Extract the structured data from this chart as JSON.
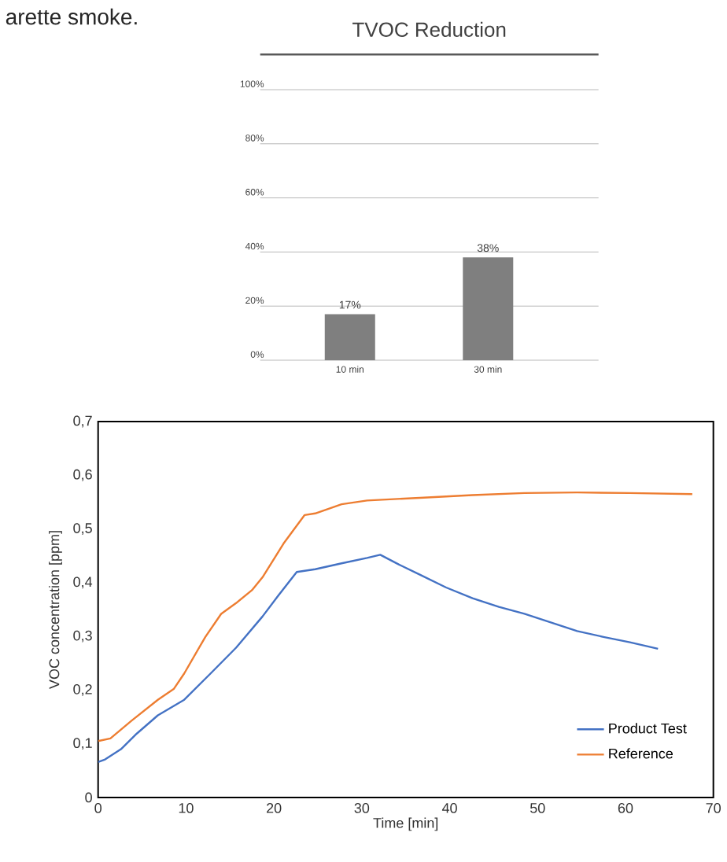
{
  "chart_data": [
    {
      "type": "bar",
      "title": "TVOC Reduction",
      "annotations": [
        "arette smoke."
      ],
      "categories": [
        "10 min",
        "30 min"
      ],
      "values": [
        17,
        38
      ],
      "value_labels": [
        "17%",
        "38%"
      ],
      "color": "#7f7f7f",
      "ylim": [
        0,
        100
      ],
      "yticks": [
        {
          "value": 0,
          "label": "0%"
        },
        {
          "value": 20,
          "label": "20%"
        },
        {
          "value": 40,
          "label": "40%"
        },
        {
          "value": 60,
          "label": "60%"
        },
        {
          "value": 80,
          "label": "80%"
        },
        {
          "value": 100,
          "label": "100%"
        }
      ],
      "grid": "y",
      "legend": false
    },
    {
      "type": "line",
      "xlabel": "Time [min]",
      "ylabel": "VOC concentration [ppm]",
      "xlim": [
        0,
        70
      ],
      "xticks": [
        0,
        10,
        20,
        30,
        40,
        50,
        60,
        70
      ],
      "ylim": [
        0,
        0.7
      ],
      "yticks": [
        0,
        {
          "value": 0.1,
          "label": "0,1"
        },
        {
          "value": 0.2,
          "label": "0,2"
        },
        {
          "value": 0.3,
          "label": "0,3"
        },
        {
          "value": 0.4,
          "label": "0,4"
        },
        {
          "value": 0.5,
          "label": "0,5"
        },
        {
          "value": 0.6,
          "label": "0,6"
        },
        {
          "value": 0.7,
          "label": "0,7"
        }
      ],
      "legend": "bottom right",
      "grid": false,
      "line_style": "solid",
      "marker": "none",
      "series": [
        {
          "name": "Product Test",
          "color": "#4472c4",
          "x": [
            0,
            0.8,
            2.6,
            4.4,
            6.8,
            9.8,
            12.8,
            15.7,
            18.7,
            20.5,
            22.6,
            24.7,
            27.7,
            30.6,
            32.1,
            34.2,
            36.6,
            39.6,
            42.6,
            45.6,
            48.5,
            51.5,
            54.5,
            57.5,
            60.5,
            63.7
          ],
          "values": [
            0.066,
            0.071,
            0.09,
            0.119,
            0.153,
            0.182,
            0.231,
            0.279,
            0.337,
            0.376,
            0.42,
            0.425,
            0.436,
            0.446,
            0.452,
            0.434,
            0.415,
            0.391,
            0.371,
            0.355,
            0.342,
            0.326,
            0.31,
            0.299,
            0.289,
            0.277
          ]
        },
        {
          "name": "Reference",
          "color": "#ed7d31",
          "x": [
            0,
            1.4,
            3.8,
            6.8,
            8.6,
            9.8,
            12.2,
            14,
            15.7,
            17.5,
            18.7,
            21.1,
            23.5,
            24.7,
            27.7,
            30.6,
            36.6,
            42.6,
            48.5,
            54.5,
            60.5,
            67.6
          ],
          "values": [
            0.105,
            0.11,
            0.143,
            0.182,
            0.202,
            0.231,
            0.299,
            0.342,
            0.362,
            0.386,
            0.41,
            0.473,
            0.526,
            0.529,
            0.546,
            0.553,
            0.558,
            0.563,
            0.567,
            0.568,
            0.567,
            0.565
          ]
        }
      ]
    }
  ]
}
